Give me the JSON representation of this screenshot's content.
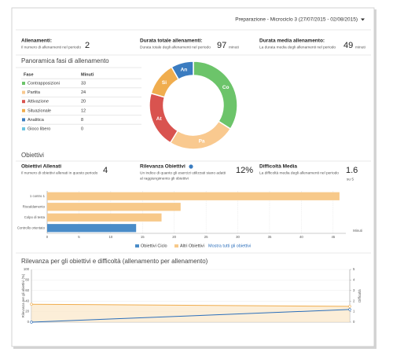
{
  "header": {
    "period": "Preparazione - Microciclo 3 (27/07/2015 - 02/08/2015)"
  },
  "stats": [
    {
      "title": "Allenamenti:",
      "description": "Il numero di allenamenti nel periodo",
      "value": 2
    },
    {
      "title": "Durata totale allenamenti:",
      "description": "Durata totale degli allenamenti nel periodo",
      "value": 97,
      "unit": "minuti"
    },
    {
      "title": "Durata media allenamento:",
      "description": "La durata media degli allenamenti nel periodo",
      "value": 49,
      "unit": "minuti"
    }
  ],
  "overview": {
    "title": "Panoramica fasi di allenamento",
    "columns": [
      "Fase",
      "Minuti"
    ]
  },
  "objectives": {
    "title": "Obiettivi",
    "stats": [
      {
        "title": "Obiettivi Allenati",
        "description": [
          "Il numero di obiettivi allenati in questo periodo"
        ],
        "value": 4
      },
      {
        "title": "Rilevanza Obiettivi",
        "description": [
          "Un indice di quanto gli esercizi utilizzati siano adatti",
          "al raggiungimento gli obiettivi"
        ],
        "value": "12%"
      },
      {
        "title": "Difficoltà Media",
        "description": [
          "La difficoltà media degli allenamenti nel periodo"
        ],
        "value": 1.6,
        "unit": "su 5"
      }
    ],
    "link": "Mostra tutti gli obiettivi"
  },
  "chart_data": [
    {
      "type": "pie",
      "categories": [
        "Contrapposizioni",
        "Partita",
        "Attivazione",
        "Situazionale",
        "Analitica",
        "Gioco libero"
      ],
      "values": [
        33,
        24,
        20,
        12,
        8,
        0
      ],
      "labels": [
        "Co",
        "Pa",
        "At",
        "Si",
        "An",
        null
      ],
      "colors": [
        "#6cc46a",
        "#f9c98f",
        "#d9534f",
        "#f0ad4e",
        "#3b7cc0",
        "#6cc4e0"
      ]
    },
    {
      "type": "bar",
      "categories": [
        "1 contro 1",
        "Riscaldamento",
        "Colpo di testa",
        "Controllo orientato"
      ],
      "series": [
        {
          "name": "Obiettivi Ciclo",
          "color": "#4a8cc8",
          "values": [
            null,
            null,
            null,
            14
          ]
        },
        {
          "name": "Altri Obiettivi",
          "color": "#f7c98a",
          "values": [
            46,
            21,
            18,
            null
          ]
        }
      ],
      "xlim": [
        0,
        47
      ],
      "xticks": [
        0,
        5,
        10,
        15,
        20,
        25,
        30,
        35,
        40,
        45
      ],
      "xlabel": "Minuti",
      "grid": true
    },
    {
      "type": "line",
      "title": "Rilevanza per gli obiettivi e difficoltà (allenamento per allenamento)",
      "categories": [
        null,
        null
      ],
      "series": [
        {
          "color": "#2a6ebb",
          "values": [
            0,
            24
          ]
        },
        {
          "color": "#f0ad4e",
          "values": [
            1.7,
            1.5
          ],
          "axis": "y2"
        }
      ],
      "ylabel": "Rilevanza per gli obiettivi (%)",
      "y2label": "Difficoltà",
      "ylim": [
        0,
        100
      ],
      "yticks": [
        0,
        20,
        40,
        60,
        80,
        100
      ],
      "y2lim": [
        0,
        5
      ],
      "y2ticks": [
        0,
        1,
        2,
        3,
        4,
        5
      ],
      "grid": true
    }
  ]
}
